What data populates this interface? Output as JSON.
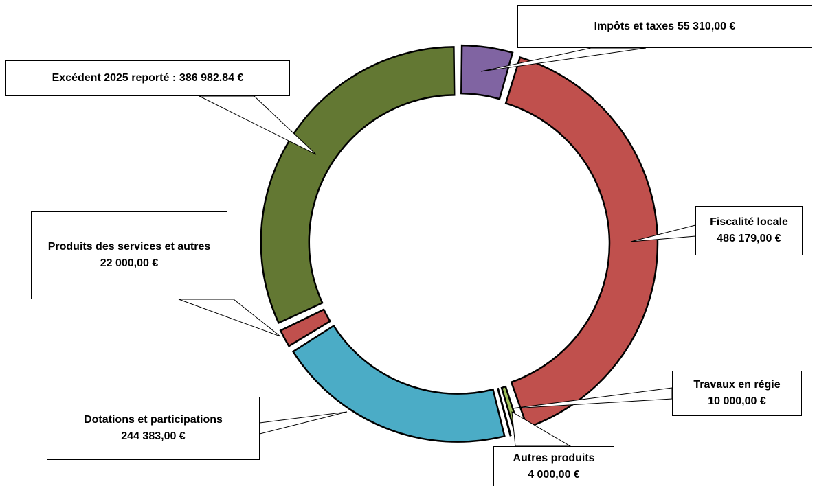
{
  "chart_data": {
    "type": "donut",
    "categories": [
      "Impôts et taxes",
      "Fiscalité locale",
      "Travaux en régie",
      "Autres produits",
      "Dotations et participations",
      "Produits des services et autres",
      "Excédent 2025 reporté :"
    ],
    "values": [
      55310,
      486179,
      10000,
      4000,
      244383,
      22000,
      386982.84
    ],
    "value_labels": [
      "55 310,00 €",
      "486 179,00 €",
      "10 000,00 €",
      "4 000,00 €",
      "244 383,00 €",
      "22 000,00 €",
      "386 982.84 €"
    ],
    "colors": [
      "#8064a2",
      "#c0504d",
      "#9bbb59",
      "#77933c",
      "#4bacc6",
      "#c0504d",
      "#637833"
    ]
  }
}
